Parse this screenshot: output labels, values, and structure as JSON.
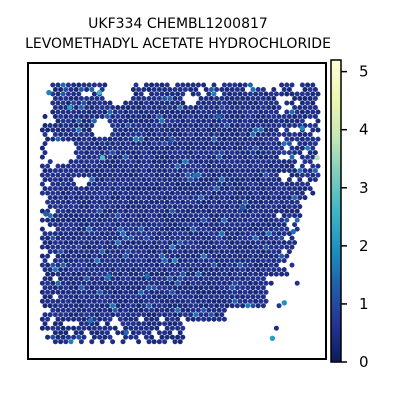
{
  "chart_data": {
    "type": "scatter",
    "title_line1": "UKF334 CHEMBL1200817",
    "title_line2": "LEVOMETHADYL ACETATE HYDROCHLORIDE",
    "xlabel": "",
    "ylabel": "",
    "axes_ticks_visible": false,
    "grid": false,
    "colormap": "YlGnBu",
    "colormap_stops": [
      "#081d58",
      "#253494",
      "#225ea8",
      "#1d91c0",
      "#41b6c4",
      "#7fcdbb",
      "#c7e9b4",
      "#edf8b1",
      "#ffffd9"
    ],
    "colorbar": {
      "position": "right",
      "min": 0,
      "max": 5.2,
      "ticks": [
        0,
        1,
        2,
        3,
        4,
        5
      ],
      "tick_labels": [
        "0",
        "1",
        "2",
        "3",
        "4",
        "5"
      ]
    },
    "value_range": [
      0,
      5.2
    ],
    "background_value": 0.3,
    "highlight_spots": [
      {
        "x": 0.25,
        "y": 0.32,
        "value": 2.8
      },
      {
        "x": 0.97,
        "y": 0.32,
        "value": 3.7
      },
      {
        "x": 0.82,
        "y": 0.93,
        "value": 2.2
      },
      {
        "x": 0.86,
        "y": 0.81,
        "value": 2.0
      },
      {
        "x": 0.56,
        "y": 0.38,
        "value": 1.6
      },
      {
        "x": 0.4,
        "y": 0.72,
        "value": 1.5
      },
      {
        "x": 0.07,
        "y": 0.1,
        "value": 1.8
      },
      {
        "x": 0.24,
        "y": 0.1,
        "value": 2.5
      },
      {
        "x": 0.14,
        "y": 0.15,
        "value": 2.2
      },
      {
        "x": 0.64,
        "y": 0.18,
        "value": 1.4
      },
      {
        "x": 0.27,
        "y": 0.72,
        "value": 1.7
      },
      {
        "x": 0.89,
        "y": 0.57,
        "value": 1.5
      },
      {
        "x": 0.06,
        "y": 0.51,
        "value": 1.3
      },
      {
        "x": 0.21,
        "y": 0.87,
        "value": 1.6
      },
      {
        "x": 0.92,
        "y": 0.22,
        "value": 1.9
      },
      {
        "x": 0.33,
        "y": 0.91,
        "value": 1.4
      },
      {
        "x": 0.72,
        "y": 0.49,
        "value": 1.2
      },
      {
        "x": 0.48,
        "y": 0.26,
        "value": 1.3
      }
    ]
  }
}
